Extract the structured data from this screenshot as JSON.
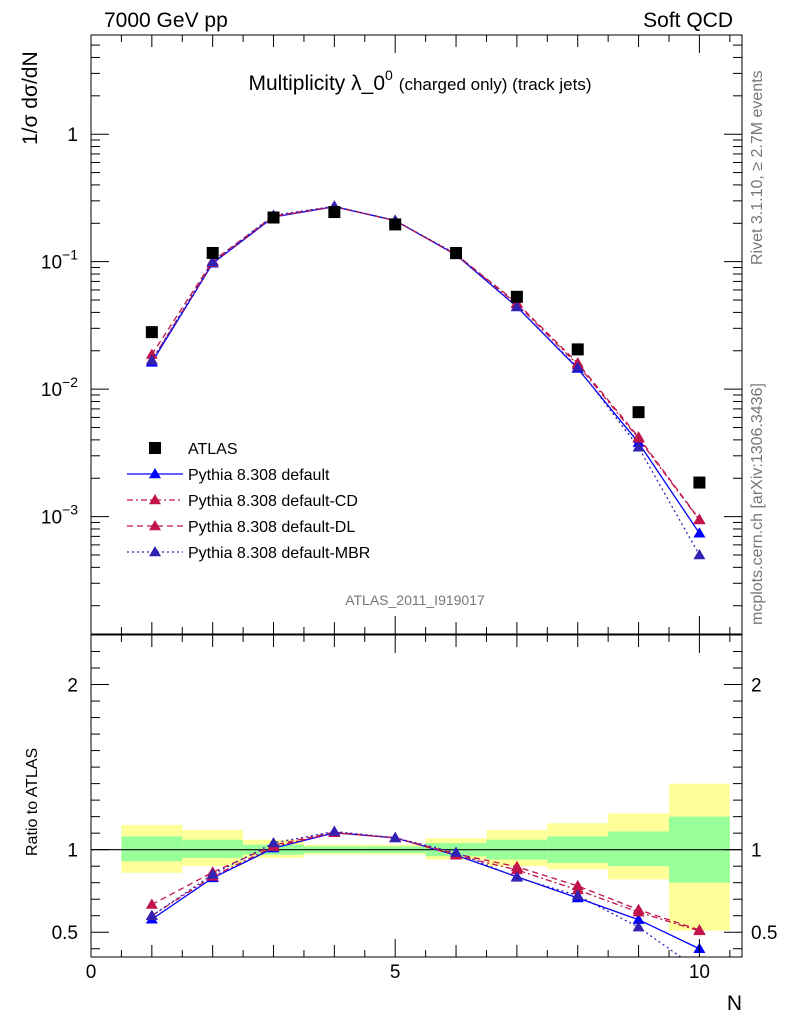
{
  "header": {
    "left": "7000 GeV pp",
    "right": "Soft QCD"
  },
  "side_labels": {
    "rivet": "Rivet 3.1.10, ≥ 2.7M events",
    "mcplots": "mcplots.cern.ch [arXiv:1306.3436]"
  },
  "chart_data": {
    "type": "line",
    "title_main": "Multiplicity λ_0",
    "title_sup": "0",
    "title_sub": "(charged only) (track jets)",
    "watermark": "ATLAS_2011_I919017",
    "top_panel": {
      "ylabel": "1/σ dσ/dN",
      "yscale": "log",
      "ylim": [
        0.00012,
        6
      ],
      "yticks": [
        {
          "v": 1,
          "base": "1",
          "exp": ""
        },
        {
          "v": 0.1,
          "base": "10",
          "exp": "−1"
        },
        {
          "v": 0.01,
          "base": "10",
          "exp": "−2"
        },
        {
          "v": 0.001,
          "base": "10",
          "exp": "−3"
        }
      ]
    },
    "bottom_panel": {
      "ylabel": "Ratio to ATLAS",
      "ylim": [
        0.35,
        2.3
      ],
      "yticks": [
        0.5,
        1,
        2
      ],
      "ytick_labels": [
        "0.5",
        "1",
        "2"
      ]
    },
    "xlabel": "N",
    "xlim": [
      0,
      10.7
    ],
    "xticks": [
      0,
      5,
      10
    ],
    "xtick_labels": [
      "0",
      "5",
      "10"
    ],
    "x": [
      1,
      2,
      3,
      4,
      5,
      6,
      7,
      8,
      9,
      10
    ],
    "data": {
      "name": "ATLAS",
      "color": "#000000",
      "values": [
        0.028,
        0.117,
        0.222,
        0.245,
        0.196,
        0.117,
        0.053,
        0.0205,
        0.0066,
        0.00185
      ],
      "band_inner": [
        [
          0.93,
          1.08
        ],
        [
          0.95,
          1.06
        ],
        [
          0.97,
          1.03
        ],
        [
          0.98,
          1.02
        ],
        [
          0.98,
          1.02
        ],
        [
          0.96,
          1.04
        ],
        [
          0.94,
          1.06
        ],
        [
          0.92,
          1.08
        ],
        [
          0.9,
          1.11
        ],
        [
          0.8,
          1.2
        ]
      ],
      "band_outer": [
        [
          0.86,
          1.15
        ],
        [
          0.9,
          1.12
        ],
        [
          0.95,
          1.06
        ],
        [
          0.97,
          1.03
        ],
        [
          0.97,
          1.03
        ],
        [
          0.94,
          1.07
        ],
        [
          0.9,
          1.12
        ],
        [
          0.88,
          1.16
        ],
        [
          0.82,
          1.22
        ],
        [
          0.51,
          1.4
        ]
      ]
    },
    "series": [
      {
        "name": "Pythia 8.308 default",
        "color": "#0000ff",
        "dash": "",
        "values": [
          0.0162,
          0.097,
          0.224,
          0.27,
          0.21,
          0.113,
          0.0443,
          0.0145,
          0.0038,
          0.00074
        ]
      },
      {
        "name": "Pythia 8.308 default-CD",
        "color": "#c0144a",
        "dash": "6,3,2,3",
        "values": [
          0.0168,
          0.098,
          0.226,
          0.27,
          0.21,
          0.113,
          0.0465,
          0.0155,
          0.0041,
          0.00094
        ]
      },
      {
        "name": "Pythia 8.308 default-DL",
        "color": "#c0144a",
        "dash": "6,4",
        "values": [
          0.0187,
          0.101,
          0.228,
          0.271,
          0.21,
          0.114,
          0.0475,
          0.016,
          0.0042,
          0.00095
        ]
      },
      {
        "name": "Pythia 8.308 default-MBR",
        "color": "#3222b4",
        "dash": "2,3",
        "values": [
          0.0168,
          0.0994,
          0.231,
          0.272,
          0.21,
          0.115,
          0.0441,
          0.0148,
          0.0035,
          0.0005
        ]
      }
    ]
  }
}
